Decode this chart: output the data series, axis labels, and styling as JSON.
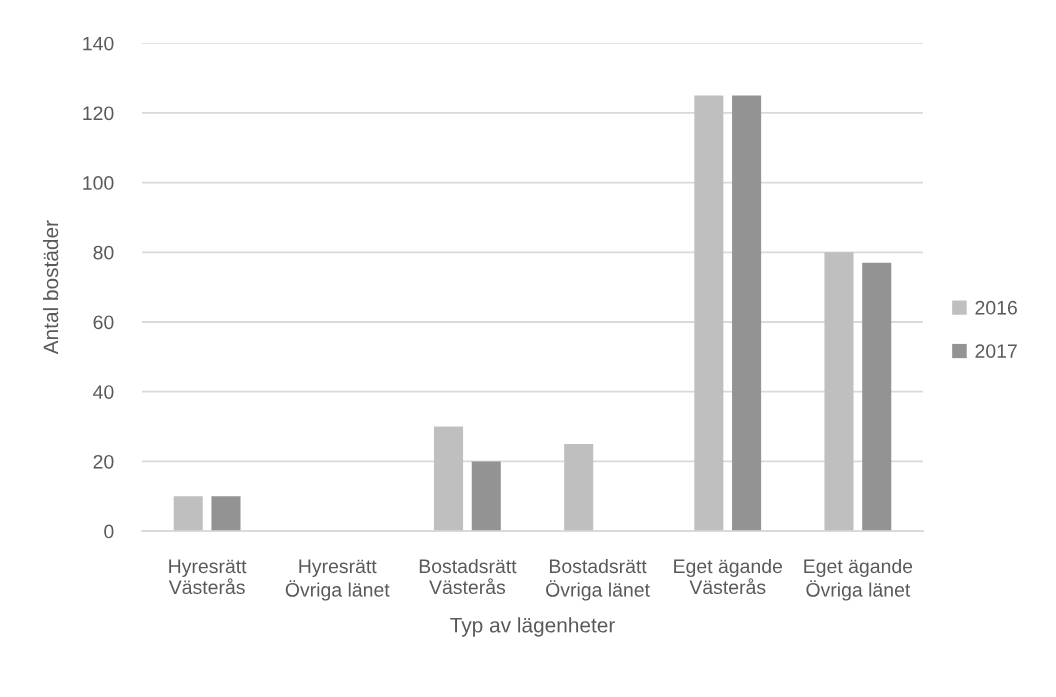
{
  "chart_data": {
    "type": "bar",
    "categories": [
      "Hyresrätt\nVästerås",
      "Hyresrätt\nÖvriga länet",
      "Bostadsrätt\nVästerås",
      "Bostadsrätt\nÖvriga länet",
      "Eget ägande\nVästerås",
      "Eget ägande\nÖvriga länet"
    ],
    "series": [
      {
        "name": "2016",
        "color": "#bfbfbf",
        "values": [
          10,
          0,
          30,
          25,
          125,
          80
        ]
      },
      {
        "name": "2017",
        "color": "#939393",
        "values": [
          10,
          0,
          20,
          0,
          125,
          77
        ]
      }
    ],
    "xlabel": "Typ av lägenheter",
    "ylabel": "Antal bostäder",
    "ylim": [
      0,
      140
    ],
    "yticks": [
      0,
      20,
      40,
      60,
      80,
      100,
      120,
      140
    ],
    "grid": "y",
    "legend": "right"
  }
}
